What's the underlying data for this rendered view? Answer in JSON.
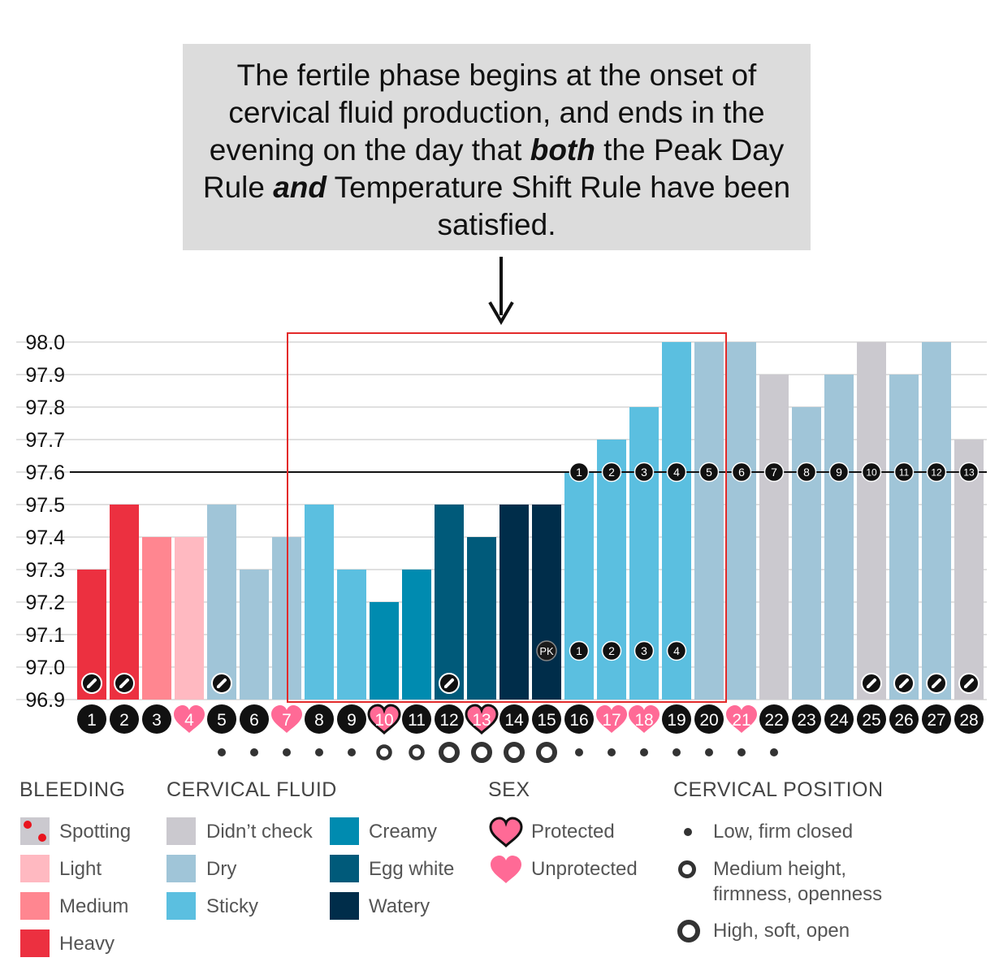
{
  "callout": {
    "part1": "The fertile phase begins at the onset of cervical fluid production, and ends in the evening on the day that ",
    "both": "both",
    "part2": " the Peak Day Rule ",
    "and": "and",
    "part3": " Temperature Shift Rule have been satisfied."
  },
  "chart_data": {
    "type": "bar",
    "ylim": [
      96.9,
      98.0
    ],
    "yticks": [
      "98.0",
      "97.9",
      "97.8",
      "97.7",
      "97.6",
      "97.5",
      "97.4",
      "97.3",
      "97.2",
      "97.1",
      "97.0",
      "96.9"
    ],
    "coverline": 97.6,
    "days": [
      "1",
      "2",
      "3",
      "4",
      "5",
      "6",
      "7",
      "8",
      "9",
      "10",
      "11",
      "12",
      "13",
      "14",
      "15",
      "16",
      "17",
      "18",
      "19",
      "20",
      "21",
      "22",
      "23",
      "24",
      "25",
      "26",
      "27",
      "28"
    ],
    "values": [
      97.3,
      97.5,
      97.4,
      97.4,
      97.5,
      97.3,
      97.4,
      97.5,
      97.3,
      97.2,
      97.3,
      97.5,
      97.4,
      97.5,
      97.5,
      97.6,
      97.7,
      97.8,
      98.0,
      98.0,
      98.0,
      97.9,
      97.8,
      97.9,
      98.0,
      97.9,
      98.0,
      97.7
    ],
    "category": [
      "heavy",
      "heavy",
      "medium",
      "light",
      "dry",
      "dry",
      "dry",
      "sticky",
      "sticky",
      "creamy",
      "creamy",
      "eggwhite",
      "eggwhite",
      "watery",
      "watery",
      "sticky",
      "sticky",
      "sticky",
      "sticky",
      "dry",
      "dry",
      "didnt",
      "dry",
      "dry",
      "didnt",
      "dry",
      "dry",
      "didnt"
    ],
    "colors": {
      "spotting": "#cbc9cf",
      "light": "#ffb9c1",
      "medium": "#ff8690",
      "heavy": "#ec3040",
      "didnt": "#cbc9cf",
      "dry": "#a0c5d8",
      "sticky": "#5bbfe0",
      "creamy": "#008bb0",
      "eggwhite": "#005a7a",
      "watery": "#002d4a",
      "heart": "#ff6a96",
      "highlight": "#e32a2a"
    },
    "sex": {
      "4": "unprotected",
      "7": "unprotected",
      "10": "protected",
      "13": "protected",
      "17": "unprotected",
      "18": "unprotected",
      "21": "unprotected"
    },
    "note_days": [
      1,
      2,
      5,
      12,
      25,
      26,
      27,
      28
    ],
    "temp_shift_counts": {
      "16": "1",
      "17": "2",
      "18": "3",
      "19": "4",
      "20": "5",
      "21": "6",
      "22": "7",
      "23": "8",
      "24": "9",
      "25": "10",
      "26": "11",
      "27": "12",
      "28": "13"
    },
    "peak_marker": {
      "day": 15,
      "label": "PK"
    },
    "peak_counts": {
      "16": "1",
      "17": "2",
      "18": "3",
      "19": "4"
    },
    "cervical_position": {
      "5": "low",
      "6": "low",
      "7": "low",
      "8": "low",
      "9": "low",
      "10": "medium",
      "11": "medium",
      "12": "high",
      "13": "high",
      "14": "high",
      "15": "high",
      "16": "low",
      "17": "low",
      "18": "low",
      "19": "low",
      "20": "low",
      "21": "low",
      "22": "low"
    },
    "highlight_days": [
      8,
      20
    ]
  },
  "legend": {
    "bleeding": {
      "title": "BLEEDING",
      "items": [
        {
          "key": "spotting",
          "label": "Spotting"
        },
        {
          "key": "light",
          "label": "Light"
        },
        {
          "key": "medium",
          "label": "Medium"
        },
        {
          "key": "heavy",
          "label": "Heavy"
        }
      ]
    },
    "fluid": {
      "title": "CERVICAL FLUID",
      "items": [
        {
          "key": "didnt",
          "label": "Didn’t check"
        },
        {
          "key": "dry",
          "label": "Dry"
        },
        {
          "key": "sticky",
          "label": "Sticky"
        },
        {
          "key": "creamy",
          "label": "Creamy"
        },
        {
          "key": "eggwhite",
          "label": "Egg white"
        },
        {
          "key": "watery",
          "label": "Watery"
        }
      ]
    },
    "sex": {
      "title": "SEX",
      "items": [
        {
          "key": "protected",
          "label": "Protected"
        },
        {
          "key": "unprotected",
          "label": "Unprotected"
        }
      ]
    },
    "position": {
      "title": "CERVICAL POSITION",
      "low": "Low, firm closed",
      "medium_line1": "Medium height,",
      "medium_line2": "firmness, openness",
      "high": "High, soft, open"
    }
  }
}
